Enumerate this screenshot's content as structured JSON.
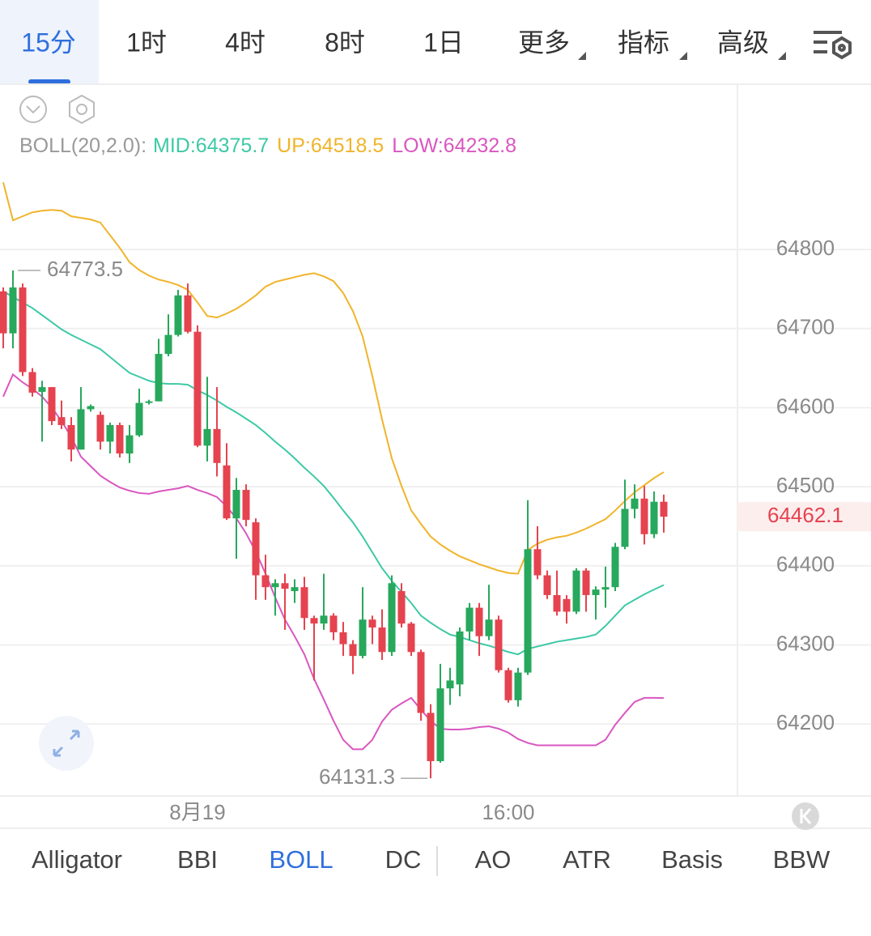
{
  "tabs": [
    "15分",
    "1时",
    "4时",
    "8时",
    "1日",
    "更多",
    "指标",
    "高级"
  ],
  "indicators": [
    "Alligator",
    "BBI",
    "BOLL",
    "DC",
    "AO",
    "ATR",
    "Basis",
    "BBW"
  ],
  "chart_data": {
    "type": "candlestick",
    "indicator_label": "BOLL(20,2.0):",
    "categories": [
      null,
      null,
      null,
      null,
      null,
      null,
      null,
      null,
      null,
      null,
      null,
      null,
      null,
      null,
      null,
      null,
      null,
      null,
      null,
      null,
      "8月19",
      null,
      null,
      null,
      null,
      null,
      null,
      null,
      null,
      null,
      null,
      null,
      null,
      null,
      null,
      null,
      null,
      null,
      null,
      null,
      null,
      null,
      null,
      null,
      null,
      null,
      null,
      null,
      null,
      null,
      null,
      null,
      "16:00",
      null,
      null,
      null,
      null,
      null,
      null,
      null,
      null,
      null,
      null,
      null,
      null,
      null,
      null,
      null,
      null
    ],
    "open": [
      64747,
      64694,
      64752,
      64645,
      64620,
      64626,
      64588,
      64578,
      64547,
      64598,
      64591,
      64557,
      64578,
      64542,
      64565,
      64606,
      64608,
      64668,
      64692,
      64742,
      64696,
      64552,
      64573,
      64527,
      64460,
      64496,
      64455,
      64388,
      64373,
      64378,
      64368,
      64373,
      64334,
      64327,
      64337,
      64316,
      64301,
      64286,
      64332,
      64322,
      64291,
      64368,
      64327,
      64291,
      64214,
      64153,
      64245,
      64250,
      64317,
      64347,
      64311,
      64332,
      64268,
      64230,
      64265,
      64421,
      64388,
      64363,
      64358,
      64342,
      64394,
      64363,
      64370,
      64373,
      64424,
      64472,
      64485,
      64440,
      64481
    ],
    "high": [
      64752,
      64773.5,
      64757,
      64650,
      64634,
      64626,
      64609,
      64588,
      64626,
      64604,
      64595,
      64581,
      64581,
      64578,
      64624,
      64610,
      64687,
      64718,
      64749,
      64757,
      64704,
      64639,
      64626,
      64555,
      64511,
      64503,
      64460,
      64414,
      64383,
      64390,
      64383,
      64386,
      64337,
      64390,
      64340,
      64329,
      64306,
      64373,
      64337,
      64345,
      64388,
      64378,
      64329,
      64294,
      64225,
      64276,
      64271,
      64322,
      64353,
      64353,
      64376,
      64337,
      64271,
      64271,
      64483,
      64450,
      64394,
      64394,
      64363,
      64397,
      64397,
      64374,
      64399,
      64429,
      64509,
      64503,
      64501,
      64494,
      64490
    ],
    "low": [
      64675,
      64675,
      64640,
      64614,
      64557,
      64578,
      64573,
      64532,
      64547,
      64595,
      64547,
      64542,
      64537,
      64530,
      64563,
      64604,
      64608,
      64665,
      64690,
      64694,
      64550,
      64532,
      64513,
      64458,
      64409,
      64450,
      64357,
      64357,
      64337,
      64319,
      64353,
      64319,
      64255,
      64319,
      64306,
      64286,
      64263,
      64283,
      64301,
      64281,
      64286,
      64322,
      64286,
      64204,
      64131.3,
      64151,
      64224,
      64235,
      64306,
      64286,
      64306,
      64265,
      64227,
      64222,
      64262,
      64383,
      64358,
      64337,
      64327,
      64339,
      64342,
      64332,
      64347,
      64368,
      64421,
      64460,
      64427,
      64435,
      64442
    ],
    "close": [
      64694,
      64752,
      64645,
      64619,
      64626,
      64583,
      64578,
      64547,
      64598,
      64602,
      64557,
      64578,
      64542,
      64565,
      64606,
      64608,
      64668,
      64692,
      64742,
      64696,
      64552,
      64573,
      64530,
      64460,
      64496,
      64458,
      64388,
      64373,
      64378,
      64371,
      64373,
      64334,
      64327,
      64337,
      64316,
      64301,
      64286,
      64332,
      64322,
      64291,
      64378,
      64327,
      64291,
      64214,
      64153,
      64245,
      64255,
      64317,
      64347,
      64311,
      64332,
      64268,
      64230,
      64265,
      64421,
      64388,
      64363,
      64342,
      64342,
      64394,
      64363,
      64370,
      64373,
      64424,
      64472,
      64485,
      64440,
      64481,
      64462.1
    ],
    "up_color": "#27a85c",
    "down_color": "#e5434f",
    "series": [
      {
        "name": "MID:64375.7",
        "color": "#3dc9a5",
        "values": [
          64747,
          64740,
          64733,
          64726,
          64717,
          64708,
          64699,
          64692,
          64686,
          64680,
          64674,
          64664,
          64654,
          64644,
          64639,
          64634,
          64631,
          64630,
          64630,
          64629,
          64622,
          64616,
          64609,
          64601,
          64594,
          64586,
          64578,
          64568,
          64557,
          64547,
          64536,
          64524,
          64513,
          64501,
          64486,
          64470,
          64455,
          64437,
          64417,
          64397,
          64381,
          64367,
          64353,
          64337,
          64328,
          64320,
          64313,
          64310,
          64306,
          64302,
          64299,
          64295,
          64291,
          64288,
          64295,
          64298,
          64301,
          64304,
          64306,
          64308,
          64310,
          64313,
          64324,
          64337,
          64350,
          64357,
          64364,
          64370,
          64375.7
        ]
      },
      {
        "name": "UP:64518.5",
        "color": "#f0b42b",
        "values": [
          64885,
          64837,
          64842,
          64847,
          64849,
          64850,
          64849,
          64842,
          64840,
          64838,
          64834,
          64818,
          64802,
          64784,
          64774,
          64767,
          64762,
          64759,
          64755,
          64749,
          64733,
          64716,
          64714,
          64719,
          64725,
          64733,
          64742,
          64753,
          64759,
          64762,
          64765,
          64768,
          64770,
          64766,
          64760,
          64745,
          64722,
          64690,
          64640,
          64585,
          64536,
          64501,
          64470,
          64453,
          64437,
          64427,
          64419,
          64412,
          64407,
          64402,
          64398,
          64394,
          64391,
          64390,
          64420,
          64428,
          64433,
          64436,
          64438,
          64442,
          64447,
          64453,
          64459,
          64470,
          64482,
          64493,
          64502,
          64511,
          64518.5
        ]
      },
      {
        "name": "LOW:64232.8",
        "color": "#d957c0",
        "values": [
          64614,
          64642,
          64632,
          64624,
          64614,
          64600,
          64583,
          64563,
          64538,
          64526,
          64514,
          64506,
          64499,
          64495,
          64492,
          64491,
          64494,
          64496,
          64498,
          64501,
          64496,
          64492,
          64487,
          64475,
          64460,
          64441,
          64418,
          64390,
          64360,
          64332,
          64311,
          64288,
          64257,
          64231,
          64204,
          64180,
          64168,
          64168,
          64180,
          64203,
          64218,
          64226,
          64233,
          64218,
          64204,
          64194,
          64193,
          64193,
          64194,
          64196,
          64197,
          64194,
          64189,
          64181,
          64176,
          64173,
          64173,
          64173,
          64173,
          64173,
          64173,
          64173,
          64180,
          64199,
          64214,
          64228,
          64233,
          64233,
          64232.8
        ]
      }
    ],
    "ylim": [
      64109,
      65008
    ],
    "yticks": [
      64200,
      64300,
      64400,
      64500,
      64600,
      64700,
      64800
    ],
    "grid": true,
    "last_price": 64462.1,
    "high_marker": 64773.5,
    "low_marker": 64131.3
  }
}
